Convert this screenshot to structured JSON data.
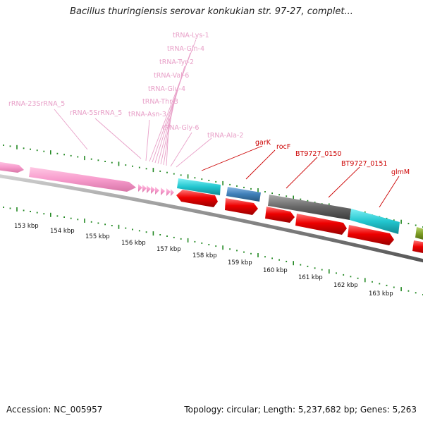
{
  "title": "Bacillus thuringiensis serovar konkukian str. 97-27, complet...",
  "footer": {
    "accession": "Accession: NC_005957",
    "topology": "Topology: circular; Length: 5,237,682 bp; Genes: 5,263"
  },
  "colors": {
    "rrna": "#f79bcc",
    "trna": "#f79bcc",
    "forward_cds": "#22c6cf",
    "forward_cds_blue": "#3f7fb8",
    "forward_cds_gray": "#666666",
    "reverse_cds": "#ee0000",
    "olive_gene": "#7a9a22",
    "backbone": "#888888",
    "ticks": "#228822",
    "gene_label_pink": "#e8a0c8",
    "gene_label_red": "#cc0000"
  },
  "pink_labels": [
    {
      "id": "trna-lys",
      "text": "tRNA-Lys-1"
    },
    {
      "id": "trna-gln",
      "text": "tRNA-Gln-4"
    },
    {
      "id": "trna-tyr",
      "text": "tRNA-Tyr-2"
    },
    {
      "id": "trna-val",
      "text": "tRNA-Val-6"
    },
    {
      "id": "trna-glu",
      "text": "tRNA-Glu-4"
    },
    {
      "id": "trna-thr",
      "text": "tRNA-Thr-3"
    },
    {
      "id": "trna-asn",
      "text": "tRNA-Asn-3"
    },
    {
      "id": "trna-gly",
      "text": "tRNA-Gly-6"
    },
    {
      "id": "trna-ala",
      "text": "tRNA-Ala-2"
    },
    {
      "id": "rrna-23s",
      "text": "rRNA-23SrRNA_5"
    },
    {
      "id": "rrna-5s",
      "text": "rRNA-5SrRNA_5"
    }
  ],
  "red_labels": [
    {
      "id": "gark",
      "text": "garK"
    },
    {
      "id": "rocf",
      "text": "rocF"
    },
    {
      "id": "bt9727-0150",
      "text": "BT9727_0150"
    },
    {
      "id": "bt9727-0151",
      "text": "BT9727_0151"
    },
    {
      "id": "glmm",
      "text": "glmM"
    }
  ],
  "kbp_labels": [
    "153 kbp",
    "154 kbp",
    "155 kbp",
    "156 kbp",
    "157 kbp",
    "158 kbp",
    "159 kbp",
    "160 kbp",
    "161 kbp",
    "162 kbp",
    "163 kbp"
  ]
}
